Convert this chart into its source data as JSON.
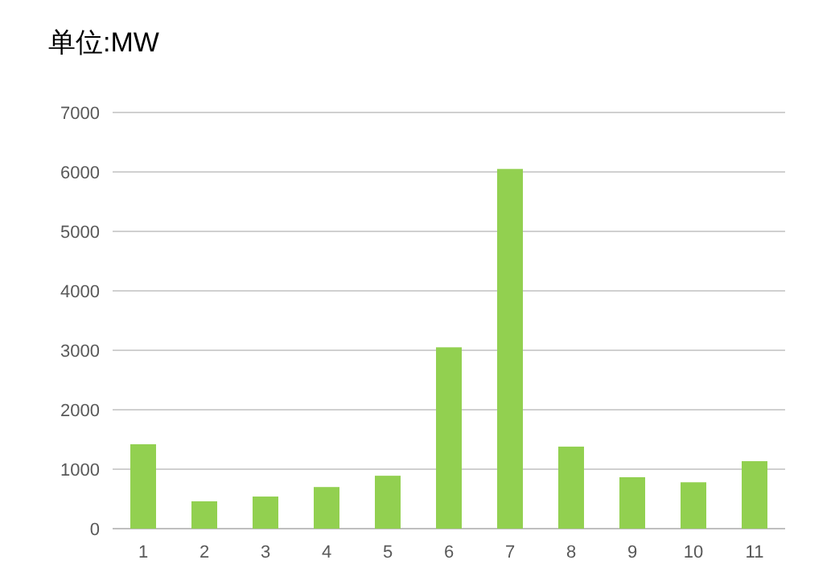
{
  "chart_data": {
    "type": "bar",
    "title": "单位:MW",
    "categories": [
      "1",
      "2",
      "3",
      "4",
      "5",
      "6",
      "7",
      "8",
      "9",
      "10",
      "11"
    ],
    "values": [
      1420,
      460,
      540,
      700,
      890,
      3050,
      6050,
      1380,
      865,
      780,
      1135
    ],
    "color": "#92d050",
    "ylim": [
      0,
      7000
    ],
    "yticks": [
      0,
      1000,
      2000,
      3000,
      4000,
      5000,
      6000,
      7000
    ],
    "grid": "y"
  }
}
